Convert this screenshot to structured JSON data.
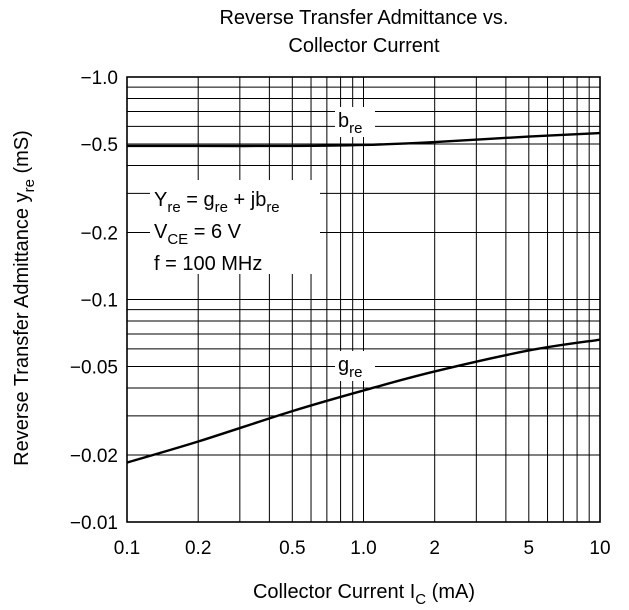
{
  "chart_data": {
    "type": "line",
    "title": [
      "Reverse Transfer Admittance vs.",
      "Collector Current"
    ],
    "xlabel": {
      "main": "Collector Current  I",
      "sub": "C",
      "unit": "  (mA)"
    },
    "ylabel": {
      "main": "Reverse Transfer Admittance  y",
      "sub": "re",
      "unit": "  (mS)"
    },
    "x_scale": "log",
    "y_scale": "log",
    "xlim": [
      0.1,
      10
    ],
    "ylim": [
      -0.01,
      -1.0
    ],
    "x_ticks": [
      {
        "value": 0.1,
        "label": "0.1"
      },
      {
        "value": 0.2,
        "label": "0.2"
      },
      {
        "value": 0.5,
        "label": "0.5"
      },
      {
        "value": 1.0,
        "label": "1.0"
      },
      {
        "value": 2,
        "label": "2"
      },
      {
        "value": 5,
        "label": "5"
      },
      {
        "value": 10,
        "label": "10"
      }
    ],
    "y_ticks": [
      {
        "value": -1.0,
        "label": "−1.0"
      },
      {
        "value": -0.5,
        "label": "−0.5"
      },
      {
        "value": -0.2,
        "label": "−0.2"
      },
      {
        "value": -0.1,
        "label": "−0.1"
      },
      {
        "value": -0.05,
        "label": "−0.05"
      },
      {
        "value": -0.02,
        "label": "−0.02"
      },
      {
        "value": -0.01,
        "label": "−0.01"
      }
    ],
    "grid": true,
    "series": [
      {
        "name": "b",
        "name_sub": "re",
        "x": [
          0.1,
          0.2,
          0.5,
          1.0,
          2,
          5,
          10
        ],
        "y": [
          -0.49,
          -0.49,
          -0.49,
          -0.495,
          -0.51,
          -0.54,
          -0.56
        ]
      },
      {
        "name": "g",
        "name_sub": "re",
        "x": [
          0.1,
          0.2,
          0.5,
          1.0,
          2,
          5,
          10
        ],
        "y": [
          -0.0185,
          -0.023,
          -0.0315,
          -0.039,
          -0.0475,
          -0.059,
          -0.066
        ]
      }
    ],
    "annotations": [
      {
        "parts": [
          {
            "text": "Y"
          },
          {
            "text": "re",
            "sub": true
          },
          {
            "text": " = g"
          },
          {
            "text": "re",
            "sub": true
          },
          {
            "text": " + jb"
          },
          {
            "text": "re",
            "sub": true
          }
        ]
      },
      {
        "parts": [
          {
            "text": "V"
          },
          {
            "text": "CE",
            "sub": true
          },
          {
            "text": " = 6 V"
          }
        ]
      },
      {
        "parts": [
          {
            "text": "f = 100 MHz"
          }
        ]
      }
    ]
  }
}
